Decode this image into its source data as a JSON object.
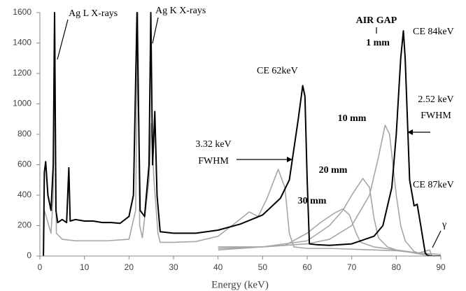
{
  "chart_data": {
    "type": "line",
    "x_label": "Energy (keV)",
    "xlim": [
      0,
      90
    ],
    "xticks": [
      0,
      10,
      20,
      30,
      40,
      50,
      60,
      70,
      80,
      90
    ],
    "ylim": [
      0,
      1600
    ],
    "yticks": [
      0,
      200,
      400,
      600,
      800,
      1000,
      1200,
      1400,
      1600
    ],
    "grid": false,
    "annotations": [
      "Ag L X-rays",
      "Ag K X-rays",
      "AIR GAP",
      "1 mm",
      "CE 84keV",
      "CE 62keV",
      "3.32 keV",
      "FWHM",
      "2.52 keV",
      "FWHM",
      "10 mm",
      "20 mm",
      "30 mm",
      "CE 87keV",
      "γ"
    ],
    "series": [
      {
        "color": "#a6a6a6",
        "x": [
          0.8,
          1,
          1.5,
          2.5,
          3.0,
          3.3,
          3.7,
          5,
          8,
          15,
          20,
          21.5,
          22,
          22.4,
          23,
          24.5,
          25,
          25.6,
          26.5,
          27,
          30,
          35,
          40,
          44,
          47,
          49,
          51,
          53.5,
          55,
          56,
          57,
          60,
          65,
          70,
          75,
          80,
          85,
          90
        ],
        "values": [
          0,
          300,
          250,
          150,
          400,
          1600,
          150,
          110,
          100,
          100,
          110,
          300,
          1600,
          200,
          120,
          500,
          870,
          500,
          150,
          90,
          90,
          95,
          130,
          220,
          290,
          260,
          380,
          570,
          450,
          150,
          60,
          50,
          50,
          45,
          40,
          35,
          20,
          10
        ]
      },
      {
        "color": "#a6a6a6",
        "x": [
          40,
          50,
          60,
          65,
          70,
          74,
          76,
          77.5,
          78.5,
          80,
          81,
          82,
          84,
          86,
          88,
          90
        ],
        "values": [
          40,
          60,
          80,
          110,
          200,
          400,
          650,
          860,
          800,
          400,
          200,
          100,
          30,
          10,
          0,
          0
        ]
      },
      {
        "color": "#a6a6a6",
        "x": [
          40,
          50,
          60,
          65,
          68,
          70,
          72.5,
          74,
          75,
          76,
          78,
          80,
          84,
          88,
          90
        ],
        "values": [
          50,
          60,
          100,
          200,
          300,
          400,
          510,
          450,
          250,
          120,
          60,
          40,
          20,
          0,
          0
        ]
      },
      {
        "color": "#a6a6a6",
        "x": [
          40,
          50,
          55,
          60,
          63,
          66,
          68,
          69.5,
          71,
          72,
          75,
          80,
          85,
          87.5,
          88,
          90
        ],
        "values": [
          60,
          60,
          70,
          150,
          220,
          280,
          310,
          270,
          150,
          90,
          60,
          40,
          20,
          40,
          0,
          0
        ]
      },
      {
        "color": "#000000",
        "x": [
          0.8,
          1,
          1.3,
          1.8,
          2.5,
          3.0,
          3.3,
          3.6,
          4,
          5,
          6,
          6.5,
          6.8,
          8,
          10,
          12,
          14,
          16,
          18,
          20,
          21,
          21.8,
          22.5,
          23.5,
          24.5,
          24.9,
          25.3,
          25.8,
          26.3,
          27,
          30,
          35,
          40,
          45,
          50,
          54,
          56,
          57,
          58,
          59,
          59.5,
          60,
          60.5,
          62,
          65,
          70,
          75,
          77,
          79,
          80,
          81,
          81.6,
          82,
          83,
          84,
          84.7,
          85.5,
          86.5,
          87,
          88,
          90
        ],
        "values": [
          0,
          550,
          620,
          400,
          300,
          600,
          1600,
          300,
          220,
          240,
          220,
          580,
          230,
          240,
          230,
          230,
          220,
          220,
          215,
          260,
          400,
          1600,
          300,
          260,
          600,
          1600,
          600,
          950,
          400,
          160,
          150,
          150,
          170,
          210,
          270,
          380,
          500,
          700,
          900,
          1120,
          1050,
          500,
          80,
          75,
          70,
          80,
          130,
          200,
          450,
          800,
          1300,
          1480,
          1300,
          500,
          330,
          340,
          200,
          20,
          5,
          0,
          0
        ]
      }
    ]
  }
}
